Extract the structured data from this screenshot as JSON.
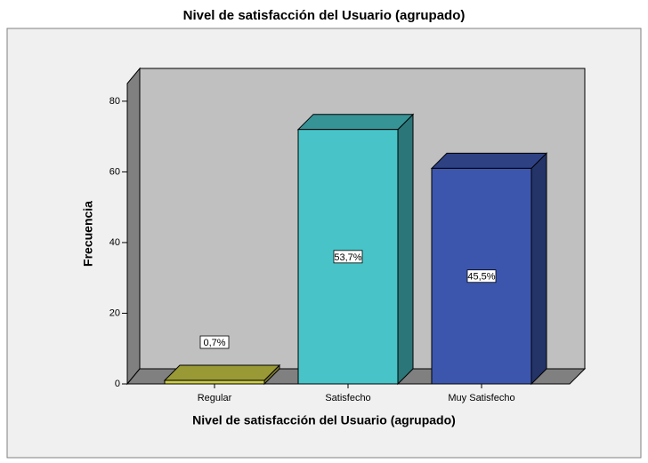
{
  "chart_data": {
    "type": "bar3d",
    "title": "Nivel de satisfacción del Usuario (agrupado)",
    "x_label": "Nivel de satisfacción del Usuario (agrupado)",
    "y_label": "Frecuencia",
    "categories": [
      "Regular",
      "Satisfecho",
      "Muy Satisfecho"
    ],
    "values": [
      1,
      72,
      61
    ],
    "data_labels": [
      "0,7%",
      "53,7%",
      "45,5%"
    ],
    "colors": [
      "#cccc48",
      "#48c4c8",
      "#3c56ae"
    ],
    "ylim": [
      0,
      85
    ],
    "yticks": [
      0,
      20,
      40,
      60,
      80
    ]
  }
}
